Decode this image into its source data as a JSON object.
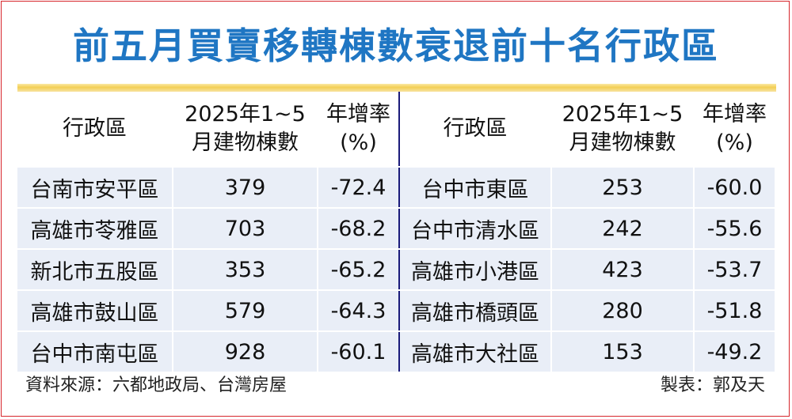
{
  "title": "前五月買賣移轉棟數衰退前十名行政區",
  "columns": {
    "district": "行政區",
    "count_line1": "2025年1~5",
    "count_line2": "月建物棟數",
    "rate_line1": "年增率",
    "rate_line2": "(%)"
  },
  "left_rows": [
    {
      "district": "台南市安平區",
      "count": "379",
      "rate": "-72.4"
    },
    {
      "district": "高雄市苓雅區",
      "count": "703",
      "rate": "-68.2"
    },
    {
      "district": "新北市五股區",
      "count": "353",
      "rate": "-65.2"
    },
    {
      "district": "高雄市鼓山區",
      "count": "579",
      "rate": "-64.3"
    },
    {
      "district": "台中市南屯區",
      "count": "928",
      "rate": "-60.1"
    }
  ],
  "right_rows": [
    {
      "district": "台中市東區",
      "count": "253",
      "rate": "-60.0"
    },
    {
      "district": "台中市清水區",
      "count": "242",
      "rate": "-55.6"
    },
    {
      "district": "高雄市小港區",
      "count": "423",
      "rate": "-53.7"
    },
    {
      "district": "高雄市橋頭區",
      "count": "280",
      "rate": "-51.8"
    },
    {
      "district": "高雄市大社區",
      "count": "153",
      "rate": "-49.2"
    }
  ],
  "footer": {
    "source": "資料來源：六都地政局、台灣房屋",
    "credit": "製表：郭及天"
  },
  "colors": {
    "title": "#1f76c3",
    "row_background": "#e9eef7",
    "divider": "#1a1a7a",
    "accent_rule": "#f3cf55",
    "frame": "#d7262c"
  },
  "chart_data": {
    "type": "table",
    "title": "前五月買賣移轉棟數衰退前十名行政區",
    "columns": [
      "行政區",
      "2025年1~5月建物棟數",
      "年增率(%)"
    ],
    "rows": [
      [
        "台南市安平區",
        379,
        -72.4
      ],
      [
        "高雄市苓雅區",
        703,
        -68.2
      ],
      [
        "新北市五股區",
        353,
        -65.2
      ],
      [
        "高雄市鼓山區",
        579,
        -64.3
      ],
      [
        "台中市南屯區",
        928,
        -60.1
      ],
      [
        "台中市東區",
        253,
        -60.0
      ],
      [
        "台中市清水區",
        242,
        -55.6
      ],
      [
        "高雄市小港區",
        423,
        -53.7
      ],
      [
        "高雄市橋頭區",
        280,
        -51.8
      ],
      [
        "高雄市大社區",
        153,
        -49.2
      ]
    ]
  }
}
